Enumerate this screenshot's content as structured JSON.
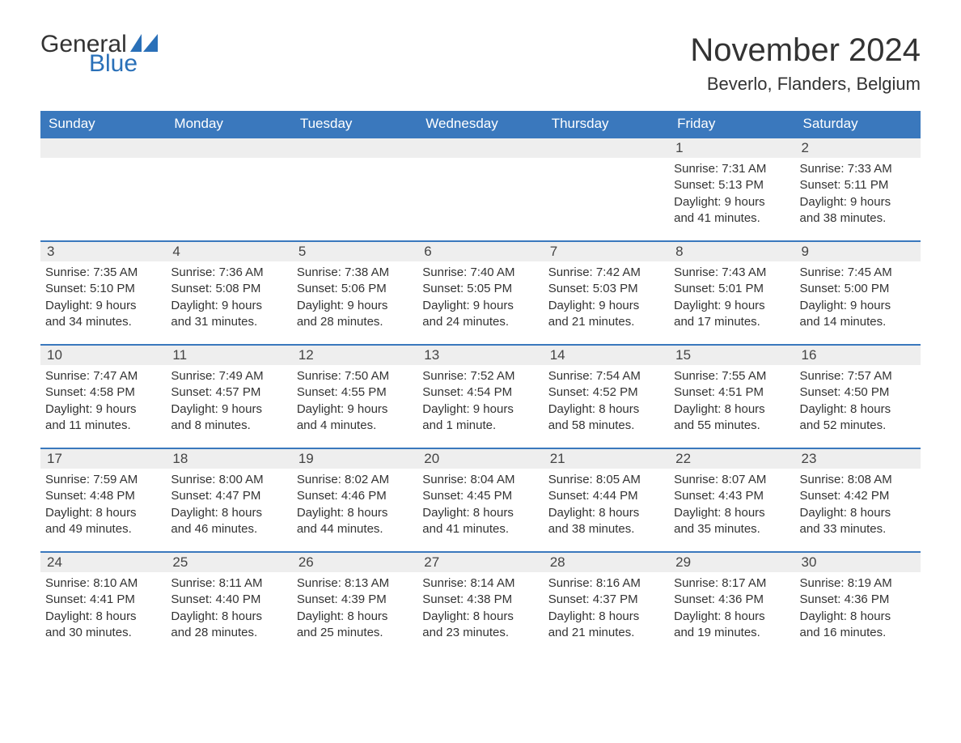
{
  "logo": {
    "general": "General",
    "blue": "Blue",
    "flag_color": "#2a70b8"
  },
  "title": "November 2024",
  "location": "Beverlo, Flanders, Belgium",
  "colors": {
    "header_bg": "#3a78bd",
    "header_text": "#ffffff",
    "daynum_bg": "#eeeeee",
    "border": "#3a78bd",
    "text": "#333333",
    "background": "#ffffff"
  },
  "typography": {
    "title_fontsize": 40,
    "location_fontsize": 22,
    "dow_fontsize": 17,
    "daynum_fontsize": 17,
    "body_fontsize": 15
  },
  "days_of_week": [
    "Sunday",
    "Monday",
    "Tuesday",
    "Wednesday",
    "Thursday",
    "Friday",
    "Saturday"
  ],
  "weeks": [
    [
      {
        "empty": true
      },
      {
        "empty": true
      },
      {
        "empty": true
      },
      {
        "empty": true
      },
      {
        "empty": true
      },
      {
        "num": "1",
        "sunrise": "Sunrise: 7:31 AM",
        "sunset": "Sunset: 5:13 PM",
        "daylight1": "Daylight: 9 hours",
        "daylight2": "and 41 minutes."
      },
      {
        "num": "2",
        "sunrise": "Sunrise: 7:33 AM",
        "sunset": "Sunset: 5:11 PM",
        "daylight1": "Daylight: 9 hours",
        "daylight2": "and 38 minutes."
      }
    ],
    [
      {
        "num": "3",
        "sunrise": "Sunrise: 7:35 AM",
        "sunset": "Sunset: 5:10 PM",
        "daylight1": "Daylight: 9 hours",
        "daylight2": "and 34 minutes."
      },
      {
        "num": "4",
        "sunrise": "Sunrise: 7:36 AM",
        "sunset": "Sunset: 5:08 PM",
        "daylight1": "Daylight: 9 hours",
        "daylight2": "and 31 minutes."
      },
      {
        "num": "5",
        "sunrise": "Sunrise: 7:38 AM",
        "sunset": "Sunset: 5:06 PM",
        "daylight1": "Daylight: 9 hours",
        "daylight2": "and 28 minutes."
      },
      {
        "num": "6",
        "sunrise": "Sunrise: 7:40 AM",
        "sunset": "Sunset: 5:05 PM",
        "daylight1": "Daylight: 9 hours",
        "daylight2": "and 24 minutes."
      },
      {
        "num": "7",
        "sunrise": "Sunrise: 7:42 AM",
        "sunset": "Sunset: 5:03 PM",
        "daylight1": "Daylight: 9 hours",
        "daylight2": "and 21 minutes."
      },
      {
        "num": "8",
        "sunrise": "Sunrise: 7:43 AM",
        "sunset": "Sunset: 5:01 PM",
        "daylight1": "Daylight: 9 hours",
        "daylight2": "and 17 minutes."
      },
      {
        "num": "9",
        "sunrise": "Sunrise: 7:45 AM",
        "sunset": "Sunset: 5:00 PM",
        "daylight1": "Daylight: 9 hours",
        "daylight2": "and 14 minutes."
      }
    ],
    [
      {
        "num": "10",
        "sunrise": "Sunrise: 7:47 AM",
        "sunset": "Sunset: 4:58 PM",
        "daylight1": "Daylight: 9 hours",
        "daylight2": "and 11 minutes."
      },
      {
        "num": "11",
        "sunrise": "Sunrise: 7:49 AM",
        "sunset": "Sunset: 4:57 PM",
        "daylight1": "Daylight: 9 hours",
        "daylight2": "and 8 minutes."
      },
      {
        "num": "12",
        "sunrise": "Sunrise: 7:50 AM",
        "sunset": "Sunset: 4:55 PM",
        "daylight1": "Daylight: 9 hours",
        "daylight2": "and 4 minutes."
      },
      {
        "num": "13",
        "sunrise": "Sunrise: 7:52 AM",
        "sunset": "Sunset: 4:54 PM",
        "daylight1": "Daylight: 9 hours",
        "daylight2": "and 1 minute."
      },
      {
        "num": "14",
        "sunrise": "Sunrise: 7:54 AM",
        "sunset": "Sunset: 4:52 PM",
        "daylight1": "Daylight: 8 hours",
        "daylight2": "and 58 minutes."
      },
      {
        "num": "15",
        "sunrise": "Sunrise: 7:55 AM",
        "sunset": "Sunset: 4:51 PM",
        "daylight1": "Daylight: 8 hours",
        "daylight2": "and 55 minutes."
      },
      {
        "num": "16",
        "sunrise": "Sunrise: 7:57 AM",
        "sunset": "Sunset: 4:50 PM",
        "daylight1": "Daylight: 8 hours",
        "daylight2": "and 52 minutes."
      }
    ],
    [
      {
        "num": "17",
        "sunrise": "Sunrise: 7:59 AM",
        "sunset": "Sunset: 4:48 PM",
        "daylight1": "Daylight: 8 hours",
        "daylight2": "and 49 minutes."
      },
      {
        "num": "18",
        "sunrise": "Sunrise: 8:00 AM",
        "sunset": "Sunset: 4:47 PM",
        "daylight1": "Daylight: 8 hours",
        "daylight2": "and 46 minutes."
      },
      {
        "num": "19",
        "sunrise": "Sunrise: 8:02 AM",
        "sunset": "Sunset: 4:46 PM",
        "daylight1": "Daylight: 8 hours",
        "daylight2": "and 44 minutes."
      },
      {
        "num": "20",
        "sunrise": "Sunrise: 8:04 AM",
        "sunset": "Sunset: 4:45 PM",
        "daylight1": "Daylight: 8 hours",
        "daylight2": "and 41 minutes."
      },
      {
        "num": "21",
        "sunrise": "Sunrise: 8:05 AM",
        "sunset": "Sunset: 4:44 PM",
        "daylight1": "Daylight: 8 hours",
        "daylight2": "and 38 minutes."
      },
      {
        "num": "22",
        "sunrise": "Sunrise: 8:07 AM",
        "sunset": "Sunset: 4:43 PM",
        "daylight1": "Daylight: 8 hours",
        "daylight2": "and 35 minutes."
      },
      {
        "num": "23",
        "sunrise": "Sunrise: 8:08 AM",
        "sunset": "Sunset: 4:42 PM",
        "daylight1": "Daylight: 8 hours",
        "daylight2": "and 33 minutes."
      }
    ],
    [
      {
        "num": "24",
        "sunrise": "Sunrise: 8:10 AM",
        "sunset": "Sunset: 4:41 PM",
        "daylight1": "Daylight: 8 hours",
        "daylight2": "and 30 minutes."
      },
      {
        "num": "25",
        "sunrise": "Sunrise: 8:11 AM",
        "sunset": "Sunset: 4:40 PM",
        "daylight1": "Daylight: 8 hours",
        "daylight2": "and 28 minutes."
      },
      {
        "num": "26",
        "sunrise": "Sunrise: 8:13 AM",
        "sunset": "Sunset: 4:39 PM",
        "daylight1": "Daylight: 8 hours",
        "daylight2": "and 25 minutes."
      },
      {
        "num": "27",
        "sunrise": "Sunrise: 8:14 AM",
        "sunset": "Sunset: 4:38 PM",
        "daylight1": "Daylight: 8 hours",
        "daylight2": "and 23 minutes."
      },
      {
        "num": "28",
        "sunrise": "Sunrise: 8:16 AM",
        "sunset": "Sunset: 4:37 PM",
        "daylight1": "Daylight: 8 hours",
        "daylight2": "and 21 minutes."
      },
      {
        "num": "29",
        "sunrise": "Sunrise: 8:17 AM",
        "sunset": "Sunset: 4:36 PM",
        "daylight1": "Daylight: 8 hours",
        "daylight2": "and 19 minutes."
      },
      {
        "num": "30",
        "sunrise": "Sunrise: 8:19 AM",
        "sunset": "Sunset: 4:36 PM",
        "daylight1": "Daylight: 8 hours",
        "daylight2": "and 16 minutes."
      }
    ]
  ]
}
